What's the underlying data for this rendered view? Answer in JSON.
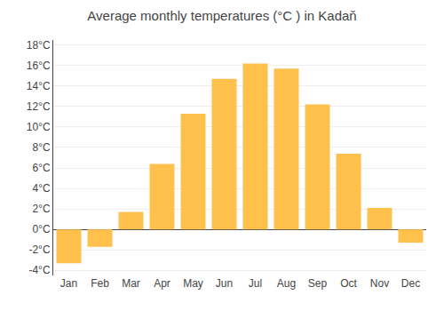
{
  "chart_data": {
    "type": "bar",
    "title": "Average monthly temperatures (°C ) in Kadaň",
    "categories": [
      "Jan",
      "Feb",
      "Mar",
      "Apr",
      "May",
      "Jun",
      "Jul",
      "Aug",
      "Sep",
      "Oct",
      "Nov",
      "Dec"
    ],
    "values": [
      -3.3,
      -1.7,
      1.7,
      6.4,
      11.3,
      14.7,
      16.2,
      15.7,
      12.2,
      7.4,
      2.1,
      -1.3
    ],
    "color": "#FFC04C",
    "ylim": [
      -4.5,
      18.5
    ],
    "yticks": [
      {
        "value": -4,
        "label": "-4°C"
      },
      {
        "value": -2,
        "label": "-2°C"
      },
      {
        "value": 0,
        "label": "0°C"
      },
      {
        "value": 2,
        "label": "2°C"
      },
      {
        "value": 4,
        "label": "4°C"
      },
      {
        "value": 6,
        "label": "6°C"
      },
      {
        "value": 8,
        "label": "8°C"
      },
      {
        "value": 10,
        "label": "10°C"
      },
      {
        "value": 12,
        "label": "12°C"
      },
      {
        "value": 14,
        "label": "14°C"
      },
      {
        "value": 16,
        "label": "16°C"
      },
      {
        "value": 18,
        "label": "18°C"
      }
    ],
    "grid": true
  }
}
